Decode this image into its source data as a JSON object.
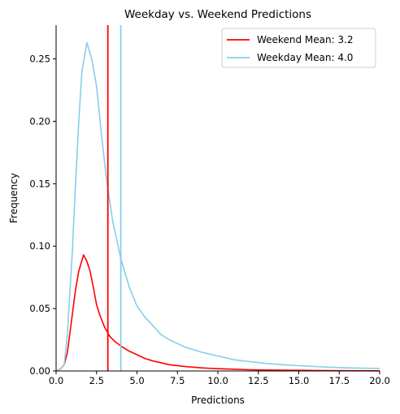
{
  "chart_data": {
    "type": "line",
    "title": "Weekday vs. Weekend Predictions",
    "xlabel": "Predictions",
    "ylabel": "Frequency",
    "xlim": [
      0.0,
      20.0
    ],
    "ylim": [
      0.0,
      0.277
    ],
    "xticks": [
      "0.0",
      "2.5",
      "5.0",
      "7.5",
      "10.0",
      "12.5",
      "15.0",
      "17.5",
      "20.0"
    ],
    "yticks": [
      "0.00",
      "0.05",
      "0.10",
      "0.15",
      "0.20",
      "0.25"
    ],
    "grid": false,
    "legend_position": "top-right",
    "series": [
      {
        "name": "Weekend",
        "color": "#ff0000",
        "x": [
          0.0,
          0.3,
          0.5,
          0.7,
          1.0,
          1.2,
          1.4,
          1.7,
          1.9,
          2.1,
          2.3,
          2.5,
          2.7,
          3.0,
          3.3,
          3.6,
          4.0,
          4.5,
          5.0,
          5.5,
          6.0,
          7.0,
          8.0,
          9.0,
          10.0,
          11.0,
          12.0,
          13.0,
          14.0,
          15.0,
          16.0,
          17.0,
          18.0,
          20.0
        ],
        "y": [
          0.0,
          0.002,
          0.005,
          0.015,
          0.045,
          0.065,
          0.08,
          0.093,
          0.088,
          0.08,
          0.067,
          0.053,
          0.045,
          0.035,
          0.028,
          0.024,
          0.02,
          0.016,
          0.013,
          0.01,
          0.008,
          0.005,
          0.0035,
          0.0025,
          0.0018,
          0.0014,
          0.001,
          0.0008,
          0.0006,
          0.0005,
          0.0004,
          0.0003,
          0.0002,
          0.0001
        ]
      },
      {
        "name": "Weekday",
        "color": "#87ceeb",
        "x": [
          0.0,
          0.3,
          0.5,
          0.7,
          1.0,
          1.2,
          1.4,
          1.6,
          1.9,
          2.2,
          2.5,
          2.8,
          3.1,
          3.5,
          4.0,
          4.5,
          5.0,
          5.5,
          6.0,
          6.5,
          7.0,
          7.5,
          8.0,
          8.5,
          9.0,
          10.0,
          11.0,
          12.0,
          13.0,
          14.0,
          15.0,
          16.0,
          17.0,
          18.0,
          19.0,
          20.0
        ],
        "y": [
          0.0,
          0.002,
          0.005,
          0.03,
          0.095,
          0.15,
          0.2,
          0.24,
          0.263,
          0.25,
          0.228,
          0.19,
          0.155,
          0.12,
          0.09,
          0.068,
          0.052,
          0.043,
          0.036,
          0.029,
          0.025,
          0.022,
          0.019,
          0.017,
          0.015,
          0.012,
          0.009,
          0.0075,
          0.006,
          0.005,
          0.0042,
          0.0036,
          0.003,
          0.0025,
          0.0022,
          0.002
        ]
      }
    ],
    "vlines": [
      {
        "label": "Weekend Mean: 3.2",
        "x": 3.2,
        "color": "#ff0000"
      },
      {
        "label": "Weekday Mean: 4.0",
        "x": 4.0,
        "color": "#87ceeb"
      }
    ]
  }
}
